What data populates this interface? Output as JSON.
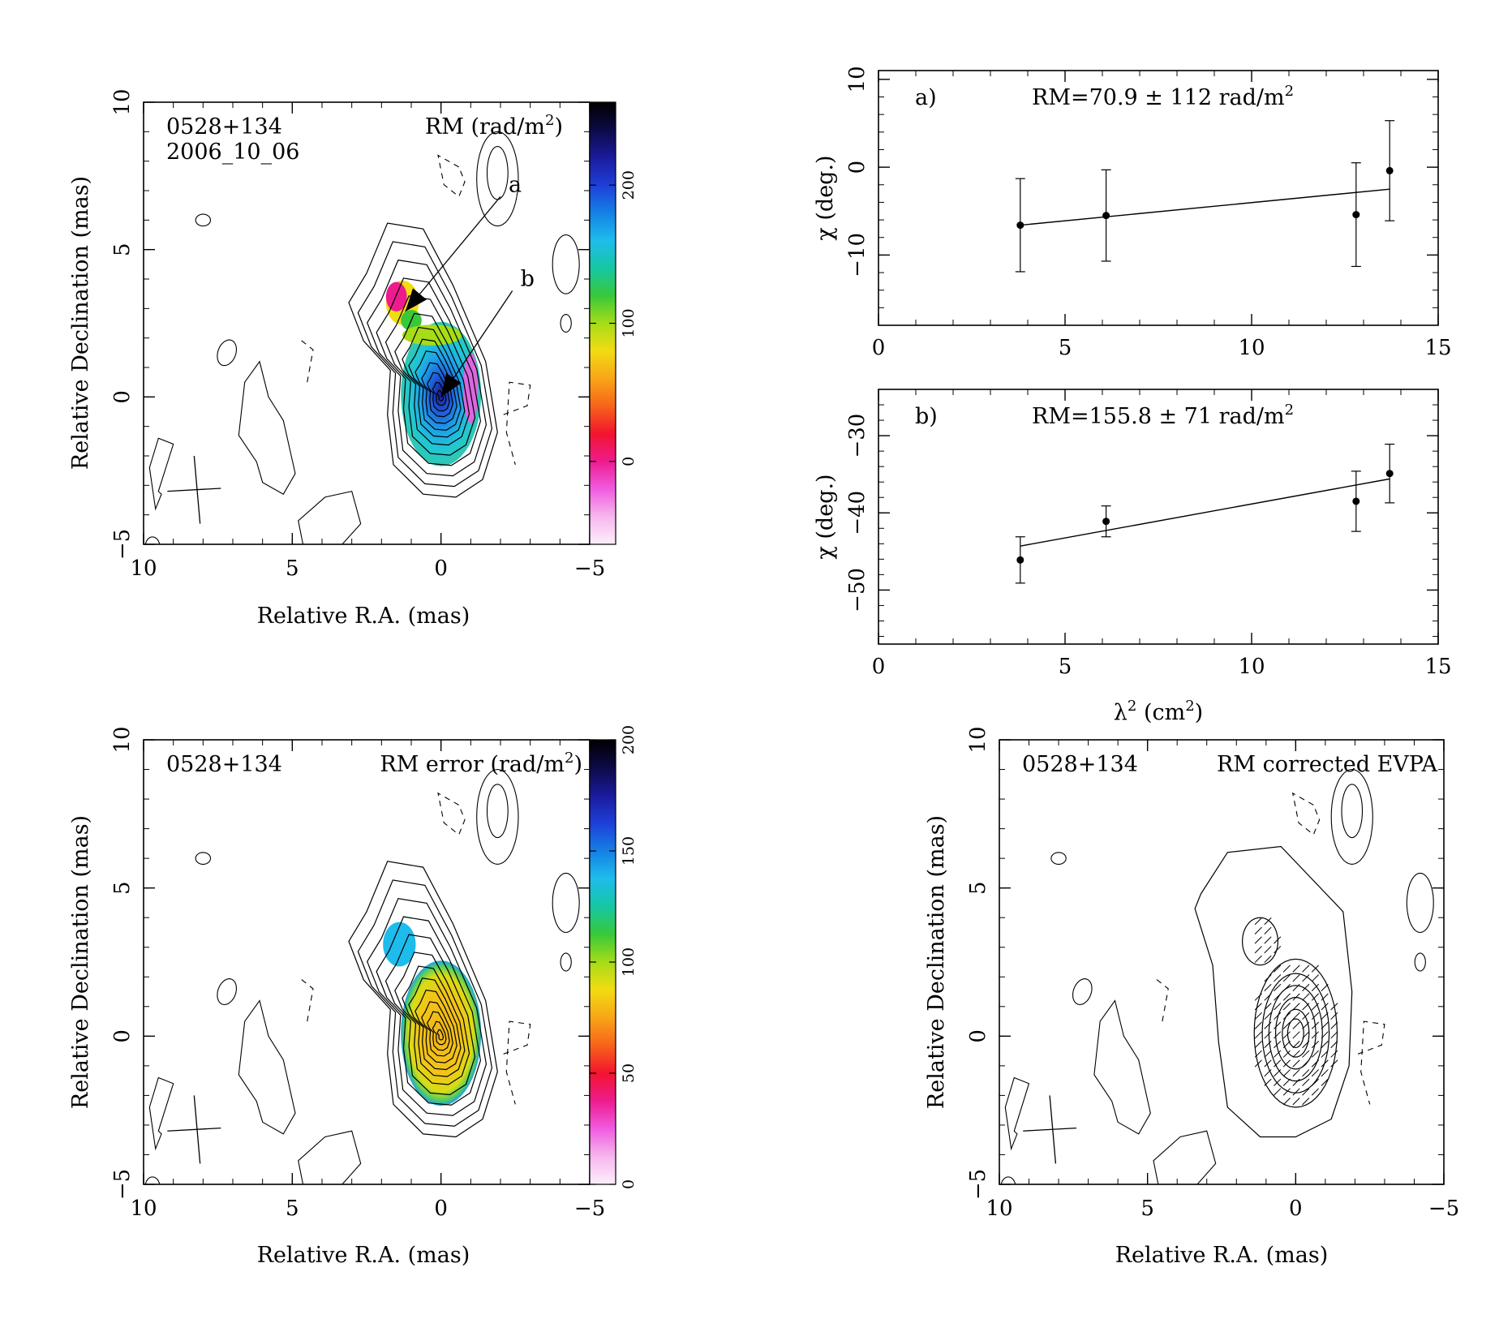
{
  "colors": {
    "ink": "#000000",
    "background": "#ffffff"
  },
  "colormaps": {
    "rm": [
      "#fdeefb",
      "#f7b6ee",
      "#f05ce0",
      "#ee1b8e",
      "#f2142e",
      "#f7641a",
      "#f8a517",
      "#f2dc12",
      "#a6dc18",
      "#38c83a",
      "#16c7a4",
      "#1ebcec",
      "#1580e6",
      "#1f3ed8",
      "#1a1b9c",
      "#0d0a46",
      "#000000"
    ],
    "err": [
      "#fdeefb",
      "#f7b6ee",
      "#f05ce0",
      "#ee1b8e",
      "#f2142e",
      "#f7641a",
      "#f8a517",
      "#f2dc12",
      "#a6dc18",
      "#38c83a",
      "#16c7a4",
      "#1ebcec",
      "#1580e6",
      "#1f3ed8",
      "#1a1b9c",
      "#0d0a46",
      "#000000"
    ]
  },
  "maps": [
    {
      "key": "rm",
      "source": "0528+134",
      "epoch": "2006_10_06",
      "quantity": "RM (rad/m",
      "quantity_sup": "2",
      "quantity_close": ")",
      "xlabel": "Relative R.A. (mas)",
      "ylabel": "Relative Declination (mas)",
      "xlim": [
        10,
        -5
      ],
      "ylim": [
        -5,
        10
      ],
      "xticks": [
        "10",
        "5",
        "0",
        "−5"
      ],
      "yticks": [
        "−5",
        "0",
        "5",
        "10"
      ],
      "colorbar": {
        "range": [
          -60,
          260
        ],
        "ticks": [
          "0",
          "100",
          "200"
        ]
      },
      "markers": [
        {
          "label": "a",
          "from": [
            -2.0,
            6.8
          ],
          "to": [
            1.2,
            2.9
          ]
        },
        {
          "label": "b",
          "from": [
            -2.4,
            3.6
          ],
          "to": [
            0.0,
            0.0
          ]
        }
      ]
    },
    {
      "key": "err",
      "source": "0528+134",
      "quantity": "RM error (rad/m",
      "quantity_sup": "2",
      "quantity_close": ")",
      "xlabel": "Relative R.A. (mas)",
      "ylabel": "Relative Declination (mas)",
      "xlim": [
        10,
        -5
      ],
      "ylim": [
        -5,
        10
      ],
      "xticks": [
        "10",
        "5",
        "0",
        "−5"
      ],
      "yticks": [
        "−5",
        "0",
        "5",
        "10"
      ],
      "colorbar": {
        "range": [
          0,
          200
        ],
        "ticks": [
          "0",
          "50",
          "100",
          "150",
          "200"
        ]
      }
    },
    {
      "key": "evpa",
      "source": "0528+134",
      "quantity": "RM corrected EVPA",
      "xlabel": "Relative R.A. (mas)",
      "ylabel": "Relative Declination (mas)",
      "xlim": [
        10,
        -5
      ],
      "ylim": [
        -5,
        10
      ],
      "xticks": [
        "10",
        "5",
        "0",
        "−5"
      ],
      "yticks": [
        "−5",
        "0",
        "5",
        "10"
      ]
    }
  ],
  "chart_data": [
    {
      "type": "scatter",
      "panel": "a)",
      "annotation": "RM=70.9 ± 112 rad/m",
      "annotation_sup": "2",
      "ylabel": "χ (deg.)",
      "xlim": [
        0,
        15
      ],
      "ylim": [
        -18,
        11
      ],
      "xticks": [
        "0",
        "5",
        "10",
        "15"
      ],
      "yticks": [
        "−10",
        "0",
        "10"
      ],
      "points": [
        {
          "x": 3.8,
          "y": -6.6,
          "err": 5.3
        },
        {
          "x": 6.1,
          "y": -5.5,
          "err": 5.2
        },
        {
          "x": 12.8,
          "y": -5.4,
          "err": 5.9
        },
        {
          "x": 13.7,
          "y": -0.4,
          "err": 5.7
        }
      ],
      "fit": {
        "x": [
          3.8,
          13.7
        ],
        "y": [
          -6.6,
          -2.5
        ]
      }
    },
    {
      "type": "scatter",
      "panel": "b)",
      "annotation": "RM=155.8 ± 71 rad/m",
      "annotation_sup": "2",
      "ylabel": "χ (deg.)",
      "xlabel": "λ",
      "xlabel_sup": "2",
      "xlabel_tail": " (cm",
      "xlabel_tail_sup": "2",
      "xlabel_close": ")",
      "xlim": [
        0,
        15
      ],
      "ylim": [
        -57,
        -24
      ],
      "xticks": [
        "0",
        "5",
        "10",
        "15"
      ],
      "yticks": [
        "−50",
        "−40",
        "−30"
      ],
      "points": [
        {
          "x": 3.8,
          "y": -46.1,
          "err": 3.0
        },
        {
          "x": 6.1,
          "y": -41.1,
          "err": 2.0
        },
        {
          "x": 12.8,
          "y": -38.5,
          "err": 3.9
        },
        {
          "x": 13.7,
          "y": -34.9,
          "err": 3.8
        }
      ],
      "fit": {
        "x": [
          3.8,
          13.7
        ],
        "y": [
          -44.3,
          -35.6
        ]
      }
    }
  ]
}
